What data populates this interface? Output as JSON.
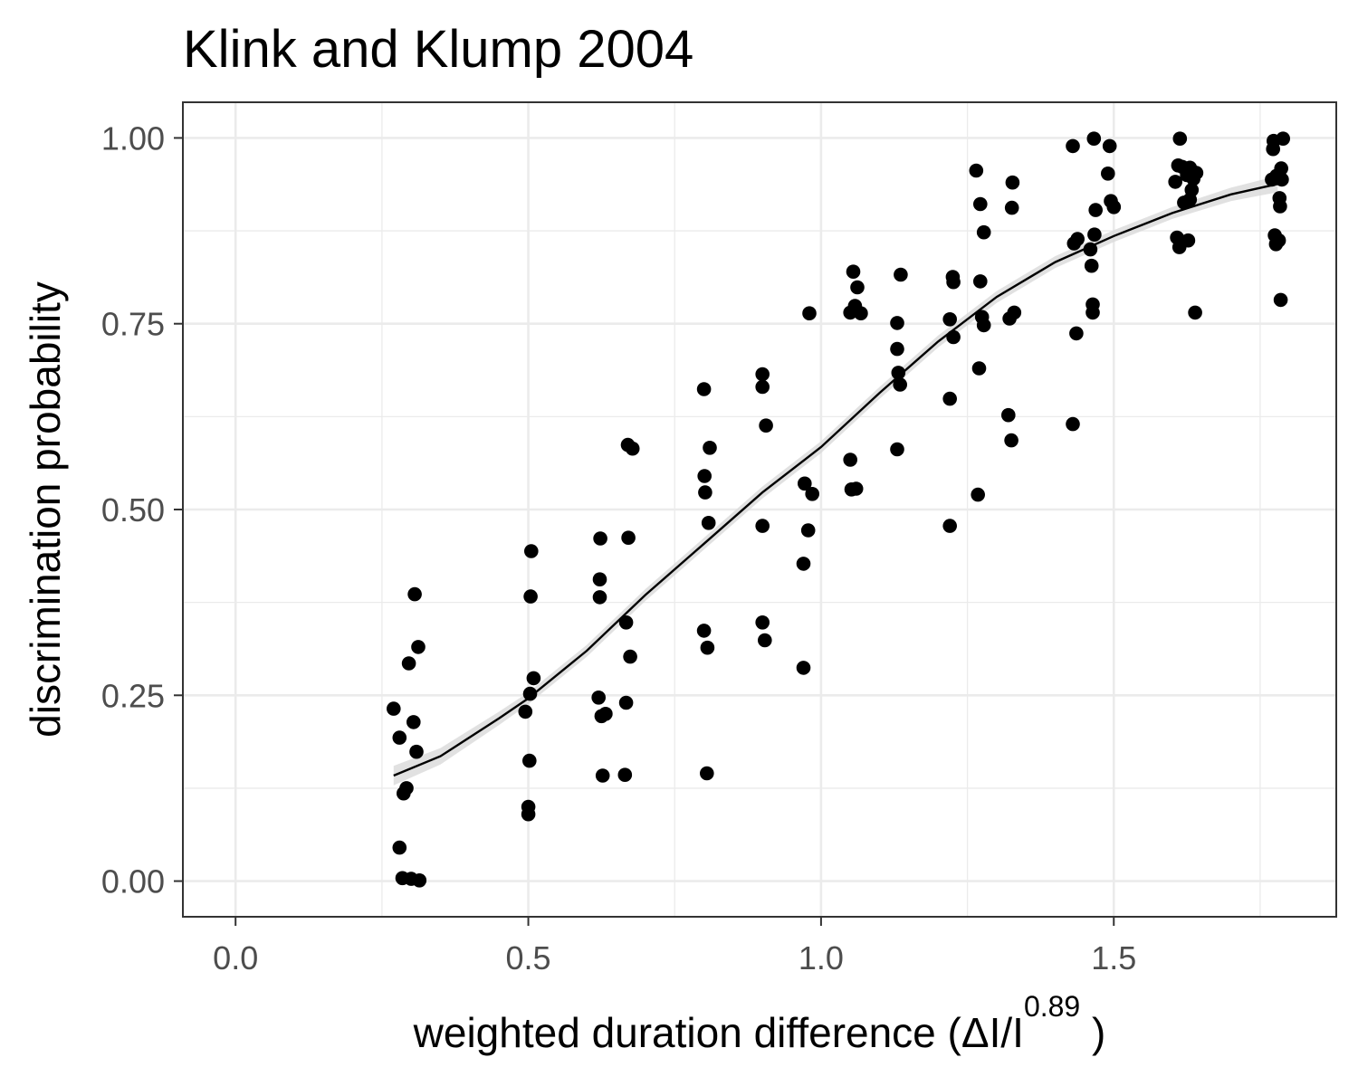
{
  "chart_data": {
    "type": "scatter",
    "title": "Klink and Klump 2004",
    "xlabel": {
      "main": "weighted  duration  difference (ΔI/I",
      "superscript": "0.89",
      "suffix": " )"
    },
    "ylabel": "discrimination probability",
    "xlim": [
      -0.09,
      1.88
    ],
    "ylim": [
      -0.048,
      1.048
    ],
    "x_ticks": [
      0.0,
      0.5,
      1.0,
      1.5
    ],
    "x_tick_labels": [
      "0.0",
      "0.5",
      "1.0",
      "1.5"
    ],
    "y_ticks": [
      0.0,
      0.25,
      0.5,
      0.75,
      1.0
    ],
    "y_tick_labels": [
      "0.00",
      "0.25",
      "0.50",
      "0.75",
      "1.00"
    ],
    "grid": true,
    "theme": "black-and-white panel border",
    "colors": {
      "points": "#000000",
      "fit": "#000000",
      "ribbon": "#d9d9d9",
      "grid": "#ebebeb",
      "border": "#333333"
    },
    "points": [
      [
        0.27,
        0.232
      ],
      [
        0.28,
        0.193
      ],
      [
        0.28,
        0.045
      ],
      [
        0.285,
        0.004
      ],
      [
        0.287,
        0.118
      ],
      [
        0.292,
        0.125
      ],
      [
        0.296,
        0.293
      ],
      [
        0.3,
        0.003
      ],
      [
        0.304,
        0.214
      ],
      [
        0.306,
        0.386
      ],
      [
        0.309,
        0.174
      ],
      [
        0.312,
        0.315
      ],
      [
        0.314,
        0.001
      ],
      [
        0.495,
        0.228
      ],
      [
        0.5,
        0.1
      ],
      [
        0.5,
        0.09
      ],
      [
        0.502,
        0.162
      ],
      [
        0.503,
        0.252
      ],
      [
        0.504,
        0.383
      ],
      [
        0.505,
        0.444
      ],
      [
        0.509,
        0.273
      ],
      [
        0.62,
        0.247
      ],
      [
        0.622,
        0.406
      ],
      [
        0.622,
        0.382
      ],
      [
        0.623,
        0.461
      ],
      [
        0.625,
        0.222
      ],
      [
        0.627,
        0.142
      ],
      [
        0.632,
        0.225
      ],
      [
        0.665,
        0.143
      ],
      [
        0.667,
        0.348
      ],
      [
        0.667,
        0.24
      ],
      [
        0.67,
        0.587
      ],
      [
        0.671,
        0.462
      ],
      [
        0.674,
        0.302
      ],
      [
        0.678,
        0.582
      ],
      [
        0.8,
        0.662
      ],
      [
        0.801,
        0.545
      ],
      [
        0.802,
        0.523
      ],
      [
        0.8,
        0.337
      ],
      [
        0.805,
        0.145
      ],
      [
        0.806,
        0.314
      ],
      [
        0.808,
        0.482
      ],
      [
        0.81,
        0.583
      ],
      [
        0.9,
        0.682
      ],
      [
        0.9,
        0.665
      ],
      [
        0.9,
        0.478
      ],
      [
        0.9,
        0.348
      ],
      [
        0.904,
        0.324
      ],
      [
        0.906,
        0.613
      ],
      [
        0.97,
        0.287
      ],
      [
        0.97,
        0.427
      ],
      [
        0.972,
        0.535
      ],
      [
        0.978,
        0.472
      ],
      [
        0.98,
        0.764
      ],
      [
        0.985,
        0.521
      ],
      [
        1.05,
        0.765
      ],
      [
        1.05,
        0.567
      ],
      [
        1.052,
        0.527
      ],
      [
        1.055,
        0.82
      ],
      [
        1.058,
        0.774
      ],
      [
        1.06,
        0.528
      ],
      [
        1.062,
        0.799
      ],
      [
        1.068,
        0.764
      ],
      [
        1.13,
        0.751
      ],
      [
        1.13,
        0.716
      ],
      [
        1.13,
        0.581
      ],
      [
        1.132,
        0.684
      ],
      [
        1.135,
        0.668
      ],
      [
        1.136,
        0.816
      ],
      [
        1.22,
        0.649
      ],
      [
        1.22,
        0.478
      ],
      [
        1.22,
        0.756
      ],
      [
        1.225,
        0.813
      ],
      [
        1.226,
        0.806
      ],
      [
        1.226,
        0.732
      ],
      [
        1.265,
        0.956
      ],
      [
        1.268,
        0.52
      ],
      [
        1.27,
        0.69
      ],
      [
        1.272,
        0.911
      ],
      [
        1.272,
        0.807
      ],
      [
        1.275,
        0.759
      ],
      [
        1.278,
        0.873
      ],
      [
        1.278,
        0.748
      ],
      [
        1.32,
        0.627
      ],
      [
        1.322,
        0.757
      ],
      [
        1.325,
        0.593
      ],
      [
        1.326,
        0.906
      ],
      [
        1.327,
        0.94
      ],
      [
        1.33,
        0.765
      ],
      [
        1.43,
        0.989
      ],
      [
        1.43,
        0.615
      ],
      [
        1.432,
        0.858
      ],
      [
        1.436,
        0.737
      ],
      [
        1.438,
        0.864
      ],
      [
        1.46,
        0.85
      ],
      [
        1.462,
        0.828
      ],
      [
        1.464,
        0.776
      ],
      [
        1.464,
        0.765
      ],
      [
        1.466,
        0.999
      ],
      [
        1.467,
        0.87
      ],
      [
        1.469,
        0.903
      ],
      [
        1.49,
        0.952
      ],
      [
        1.493,
        0.989
      ],
      [
        1.495,
        0.915
      ],
      [
        1.5,
        0.907
      ],
      [
        1.605,
        0.941
      ],
      [
        1.608,
        0.866
      ],
      [
        1.61,
        0.963
      ],
      [
        1.612,
        0.853
      ],
      [
        1.613,
        0.999
      ],
      [
        1.617,
        0.961
      ],
      [
        1.62,
        0.913
      ],
      [
        1.625,
        0.95
      ],
      [
        1.627,
        0.862
      ],
      [
        1.63,
        0.96
      ],
      [
        1.63,
        0.917
      ],
      [
        1.633,
        0.93
      ],
      [
        1.636,
        0.945
      ],
      [
        1.639,
        0.765
      ],
      [
        1.641,
        0.953
      ],
      [
        1.77,
        0.944
      ],
      [
        1.772,
        0.985
      ],
      [
        1.773,
        0.996
      ],
      [
        1.775,
        0.869
      ],
      [
        1.777,
        0.857
      ],
      [
        1.778,
        0.949
      ],
      [
        1.782,
        0.862
      ],
      [
        1.783,
        0.919
      ],
      [
        1.784,
        0.908
      ],
      [
        1.785,
        0.782
      ],
      [
        1.786,
        0.959
      ],
      [
        1.787,
        0.944
      ],
      [
        1.789,
        0.999
      ]
    ],
    "fit_line": {
      "x": [
        0.27,
        0.35,
        0.45,
        0.5,
        0.6,
        0.7,
        0.8,
        0.9,
        1.0,
        1.1,
        1.2,
        1.3,
        1.4,
        1.5,
        1.6,
        1.7,
        1.78
      ],
      "y": [
        0.142,
        0.168,
        0.219,
        0.246,
        0.31,
        0.385,
        0.454,
        0.523,
        0.584,
        0.657,
        0.726,
        0.786,
        0.833,
        0.868,
        0.899,
        0.924,
        0.938
      ]
    },
    "ribbon_halfwidth": [
      0.013,
      0.011,
      0.009,
      0.008,
      0.008,
      0.008,
      0.008,
      0.008,
      0.008,
      0.008,
      0.008,
      0.008,
      0.008,
      0.008,
      0.008,
      0.009,
      0.011
    ]
  }
}
